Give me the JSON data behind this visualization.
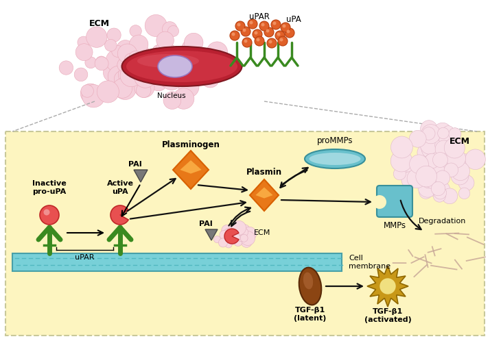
{
  "bg_top": "#ffffff",
  "bg_bottom": "#fdf5c0",
  "border_color": "#c8c89a",
  "ecm_bubble_color": "#f5d0dc",
  "ecm_bubble_edge": "#e8a8b8",
  "cell_red_dark": "#b82030",
  "cell_red_mid": "#cc3040",
  "cell_red_light": "#dd5060",
  "nucleus_color": "#c8b8e0",
  "nucleus_edge": "#9878c0",
  "green_receptor": "#3a8a20",
  "orange_dark": "#d86000",
  "orange_mid": "#e87818",
  "orange_light": "#f8a840",
  "red_ball_fc": "#e85050",
  "red_ball_ec": "#c02828",
  "red_ball_hi": "#f09090",
  "teal_fc": "#68c0cc",
  "teal_ec": "#38909a",
  "teal_light": "#a0d8e0",
  "brown_fc": "#8B4513",
  "brown_ec": "#5a2a08",
  "gold_fc": "#c89818",
  "gold_ec": "#906800",
  "gold_center": "#f0e080",
  "membrane_fc": "#78d0d8",
  "membrane_ec": "#48a0a8",
  "membrane_stripe": "#50b8c0",
  "pai_tri": "#787878",
  "pai_tri_ec": "#484848",
  "ecm_right_fc": "#f8e0e8",
  "ecm_right_ec": "#e0b8c8",
  "fibril_color": "#c8a898",
  "arrow_color": "#111111",
  "text_color": "#111111",
  "labels": {
    "ecm_top": "ECM",
    "nucleus": "Nucleus",
    "upar_top": "uPAR",
    "upa_top": "uPA",
    "inactive": "Inactive\npro-uPA",
    "active": "Active\nuPA",
    "plasminogen": "Plasminogen",
    "plasmin": "Plasmin",
    "pai_top": "PAI",
    "pai_bottom": "PAI",
    "ecm_bottom": "ECM",
    "upar_bottom": "uPAR",
    "cell_membrane": "Cell\nmembrane",
    "prommps": "proMMPs",
    "mmps": "MMPs",
    "degradation": "Degradation",
    "ecm_right": "ECM",
    "tgf_latent": "TGF-β1\n(latent)",
    "tgf_activated": "TGF-β1\n(activated)"
  }
}
